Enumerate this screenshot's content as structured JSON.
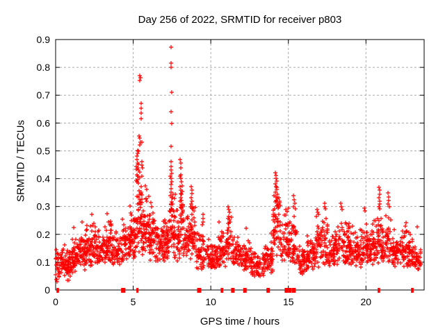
{
  "chart_data": {
    "type": "scatter",
    "title": "Day 256 of 2022, SRMTID for receiver p803",
    "xlabel": "GPS time / hours",
    "ylabel": "SRMTID / TECUs",
    "xlim": [
      0,
      23.75
    ],
    "ylim": [
      0,
      0.9
    ],
    "xticks": [
      [
        0,
        "0"
      ],
      [
        5,
        "5"
      ],
      [
        10,
        "10"
      ],
      [
        15,
        "15"
      ],
      [
        20,
        "20"
      ]
    ],
    "yticks": [
      [
        0,
        "0"
      ],
      [
        0.1,
        "0.1"
      ],
      [
        0.2,
        "0.2"
      ],
      [
        0.3,
        "0.3"
      ],
      [
        0.4,
        "0.4"
      ],
      [
        0.5,
        "0.5"
      ],
      [
        0.6,
        "0.6"
      ],
      [
        0.7,
        "0.7"
      ],
      [
        0.8,
        "0.8"
      ],
      [
        0.9,
        "0.9"
      ]
    ],
    "grid": true,
    "grid_color": "#a8a8a8",
    "marker": {
      "shape": "plus",
      "color": "#ff0000",
      "size": 7
    },
    "baseline_bands": [
      [
        0.0,
        0.3,
        0.02,
        0.18,
        25
      ],
      [
        0.3,
        0.7,
        0.05,
        0.17,
        40
      ],
      [
        0.7,
        1.0,
        0.03,
        0.15,
        40
      ],
      [
        1.0,
        1.5,
        0.06,
        0.2,
        55
      ],
      [
        1.5,
        2.0,
        0.07,
        0.22,
        55
      ],
      [
        2.0,
        2.6,
        0.08,
        0.26,
        60
      ],
      [
        2.6,
        3.2,
        0.08,
        0.22,
        60
      ],
      [
        3.2,
        3.6,
        0.09,
        0.27,
        45
      ],
      [
        3.6,
        4.3,
        0.09,
        0.22,
        60
      ],
      [
        4.3,
        4.8,
        0.1,
        0.28,
        50
      ],
      [
        4.8,
        5.2,
        0.1,
        0.34,
        50
      ],
      [
        5.2,
        5.6,
        0.12,
        0.5,
        55
      ],
      [
        5.6,
        6.0,
        0.12,
        0.38,
        50
      ],
      [
        6.0,
        6.5,
        0.1,
        0.3,
        55
      ],
      [
        6.5,
        7.0,
        0.1,
        0.26,
        55
      ],
      [
        7.0,
        7.4,
        0.1,
        0.3,
        45
      ],
      [
        7.4,
        7.6,
        0.12,
        0.4,
        25
      ],
      [
        7.6,
        8.0,
        0.1,
        0.32,
        45
      ],
      [
        8.0,
        8.3,
        0.12,
        0.42,
        35
      ],
      [
        8.3,
        8.7,
        0.1,
        0.28,
        40
      ],
      [
        8.7,
        9.0,
        0.1,
        0.34,
        35
      ],
      [
        9.0,
        9.6,
        0.07,
        0.24,
        50
      ],
      [
        9.6,
        10.4,
        0.07,
        0.19,
        65
      ],
      [
        10.4,
        11.0,
        0.08,
        0.22,
        55
      ],
      [
        11.0,
        11.35,
        0.09,
        0.28,
        35
      ],
      [
        11.35,
        12.0,
        0.07,
        0.2,
        55
      ],
      [
        12.0,
        12.6,
        0.07,
        0.19,
        55
      ],
      [
        12.6,
        13.4,
        0.04,
        0.15,
        60
      ],
      [
        13.4,
        14.0,
        0.06,
        0.18,
        55
      ],
      [
        14.0,
        14.45,
        0.12,
        0.38,
        45
      ],
      [
        14.45,
        15.0,
        0.1,
        0.3,
        50
      ],
      [
        15.0,
        15.55,
        0.09,
        0.3,
        50
      ],
      [
        15.55,
        16.2,
        0.05,
        0.16,
        55
      ],
      [
        16.2,
        16.8,
        0.07,
        0.2,
        55
      ],
      [
        16.8,
        17.6,
        0.08,
        0.28,
        70
      ],
      [
        17.6,
        18.2,
        0.08,
        0.24,
        60
      ],
      [
        18.2,
        19.0,
        0.09,
        0.28,
        75
      ],
      [
        19.0,
        19.8,
        0.08,
        0.24,
        70
      ],
      [
        19.8,
        20.4,
        0.09,
        0.26,
        60
      ],
      [
        20.4,
        21.0,
        0.09,
        0.28,
        60
      ],
      [
        21.0,
        21.6,
        0.08,
        0.28,
        55
      ],
      [
        21.6,
        22.4,
        0.08,
        0.22,
        70
      ],
      [
        22.4,
        23.0,
        0.08,
        0.24,
        60
      ],
      [
        23.0,
        23.55,
        0.07,
        0.18,
        45
      ]
    ],
    "spike_points": [
      [
        5.42,
        0.77
      ],
      [
        5.46,
        0.762
      ],
      [
        5.44,
        0.752
      ],
      [
        5.5,
        0.67
      ],
      [
        5.52,
        0.652
      ],
      [
        5.49,
        0.635
      ],
      [
        5.53,
        0.615
      ],
      [
        5.36,
        0.553
      ],
      [
        5.42,
        0.545
      ],
      [
        5.46,
        0.532
      ],
      [
        5.43,
        0.52
      ],
      [
        5.56,
        0.53
      ],
      [
        5.28,
        0.502
      ],
      [
        5.31,
        0.5
      ],
      [
        5.33,
        0.498
      ],
      [
        5.3,
        0.492
      ],
      [
        5.26,
        0.48
      ],
      [
        5.23,
        0.468
      ],
      [
        5.3,
        0.455
      ],
      [
        5.34,
        0.452
      ],
      [
        5.22,
        0.443
      ],
      [
        5.28,
        0.44
      ],
      [
        5.35,
        0.432
      ],
      [
        5.4,
        0.425
      ],
      [
        5.24,
        0.415
      ],
      [
        5.3,
        0.41
      ],
      [
        5.37,
        0.405
      ],
      [
        5.2,
        0.395
      ],
      [
        5.26,
        0.39
      ],
      [
        5.33,
        0.385
      ],
      [
        5.55,
        0.46
      ],
      [
        5.58,
        0.44
      ],
      [
        7.44,
        0.872
      ],
      [
        7.45,
        0.815
      ],
      [
        7.44,
        0.8
      ],
      [
        7.47,
        0.71
      ],
      [
        7.46,
        0.64
      ],
      [
        7.48,
        0.598
      ],
      [
        7.43,
        0.515
      ],
      [
        7.46,
        0.46
      ],
      [
        7.42,
        0.445
      ],
      [
        7.44,
        0.432
      ],
      [
        7.47,
        0.42
      ],
      [
        7.41,
        0.41
      ],
      [
        7.45,
        0.402
      ],
      [
        7.48,
        0.39
      ],
      [
        7.42,
        0.378
      ],
      [
        7.46,
        0.365
      ],
      [
        7.44,
        0.352
      ],
      [
        7.4,
        0.34
      ],
      [
        7.47,
        0.332
      ],
      [
        8.04,
        0.468
      ],
      [
        8.08,
        0.455
      ],
      [
        8.06,
        0.44
      ],
      [
        8.02,
        0.41
      ],
      [
        8.06,
        0.402
      ],
      [
        8.1,
        0.388
      ],
      [
        8.03,
        0.372
      ],
      [
        8.07,
        0.358
      ],
      [
        8.11,
        0.345
      ],
      [
        8.05,
        0.332
      ],
      [
        8.0,
        0.318
      ],
      [
        8.09,
        0.305
      ],
      [
        8.76,
        0.372
      ],
      [
        8.8,
        0.36
      ],
      [
        8.78,
        0.346
      ],
      [
        8.73,
        0.332
      ],
      [
        8.8,
        0.32
      ],
      [
        8.76,
        0.308
      ],
      [
        8.71,
        0.3
      ],
      [
        8.82,
        0.292
      ],
      [
        9.48,
        0.272
      ],
      [
        9.5,
        0.258
      ],
      [
        9.52,
        0.245
      ],
      [
        9.46,
        0.235
      ],
      [
        11.12,
        0.3
      ],
      [
        11.16,
        0.29
      ],
      [
        11.2,
        0.278
      ],
      [
        11.14,
        0.265
      ],
      [
        11.22,
        0.252
      ],
      [
        11.18,
        0.24
      ],
      [
        14.18,
        0.422
      ],
      [
        14.21,
        0.412
      ],
      [
        14.19,
        0.402
      ],
      [
        14.24,
        0.392
      ],
      [
        14.16,
        0.382
      ],
      [
        14.22,
        0.372
      ],
      [
        14.26,
        0.362
      ],
      [
        14.18,
        0.352
      ],
      [
        14.28,
        0.345
      ],
      [
        14.21,
        0.335
      ],
      [
        14.3,
        0.328
      ],
      [
        14.24,
        0.318
      ],
      [
        14.33,
        0.31
      ],
      [
        14.27,
        0.302
      ],
      [
        14.4,
        0.332
      ],
      [
        14.44,
        0.318
      ],
      [
        14.48,
        0.305
      ],
      [
        15.32,
        0.338
      ],
      [
        15.36,
        0.325
      ],
      [
        15.4,
        0.312
      ],
      [
        15.34,
        0.3
      ],
      [
        15.44,
        0.292
      ],
      [
        16.84,
        0.29
      ],
      [
        16.9,
        0.28
      ],
      [
        16.95,
        0.272
      ],
      [
        17.32,
        0.312
      ],
      [
        17.36,
        0.3
      ],
      [
        17.4,
        0.292
      ],
      [
        18.36,
        0.312
      ],
      [
        18.4,
        0.3
      ],
      [
        18.44,
        0.29
      ],
      [
        19.88,
        0.295
      ],
      [
        19.93,
        0.285
      ],
      [
        20.83,
        0.368
      ],
      [
        20.86,
        0.358
      ],
      [
        20.88,
        0.345
      ],
      [
        20.84,
        0.332
      ],
      [
        20.87,
        0.32
      ],
      [
        20.9,
        0.31
      ],
      [
        20.82,
        0.3
      ],
      [
        20.86,
        0.292
      ],
      [
        21.42,
        0.348
      ],
      [
        21.45,
        0.335
      ],
      [
        21.48,
        0.322
      ],
      [
        21.44,
        0.31
      ],
      [
        21.5,
        0.298
      ],
      [
        1.15,
        0.225
      ],
      [
        1.7,
        0.245
      ],
      [
        2.35,
        0.272
      ],
      [
        3.3,
        0.275
      ],
      [
        6.15,
        0.315
      ],
      [
        6.2,
        0.3
      ],
      [
        7.7,
        0.345
      ],
      [
        7.65,
        0.33
      ],
      [
        10.55,
        0.245
      ],
      [
        12.3,
        0.222
      ],
      [
        13.9,
        0.205
      ],
      [
        22.6,
        0.242
      ],
      [
        23.3,
        0.228
      ]
    ],
    "zero_axis_marks": [
      [
        0.1,
        2
      ],
      [
        0.17,
        2
      ],
      [
        4.33,
        5
      ],
      [
        4.43,
        3
      ],
      [
        5.27,
        3
      ],
      [
        9.23,
        5
      ],
      [
        9.32,
        3
      ],
      [
        10.68,
        2
      ],
      [
        10.76,
        2
      ],
      [
        11.42,
        5
      ],
      [
        12.2,
        5
      ],
      [
        13.7,
        5
      ],
      [
        14.87,
        5
      ],
      [
        15.1,
        5
      ],
      [
        15.28,
        2
      ],
      [
        15.35,
        2
      ],
      [
        15.43,
        2
      ],
      [
        20.8,
        2
      ],
      [
        20.87,
        2
      ],
      [
        22.95,
        2
      ],
      [
        23.03,
        2
      ]
    ]
  }
}
